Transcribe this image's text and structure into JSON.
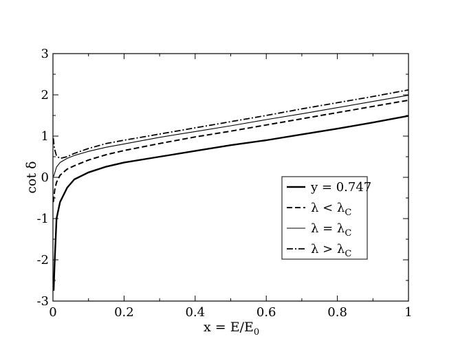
{
  "chart_data": {
    "type": "line",
    "xlabel": {
      "main": "x = E/E",
      "sub": "0"
    },
    "ylabel": "cot δ",
    "xlim": [
      0,
      1
    ],
    "ylim": [
      -3,
      3
    ],
    "x_ticks": [
      "0",
      "0.2",
      "0.4",
      "0.6",
      "0.8",
      "1"
    ],
    "y_ticks": [
      "-3",
      "-2",
      "-1",
      "0",
      "1",
      "2",
      "3"
    ],
    "legend_position": "lower-right",
    "series": [
      {
        "name": {
          "main": "y = 0.747",
          "sub": ""
        },
        "style": "solid-thick",
        "points": [
          [
            0.002,
            -2.75
          ],
          [
            0.005,
            -2.0
          ],
          [
            0.01,
            -1.0
          ],
          [
            0.02,
            -0.6
          ],
          [
            0.04,
            -0.25
          ],
          [
            0.06,
            -0.05
          ],
          [
            0.1,
            0.12
          ],
          [
            0.15,
            0.26
          ],
          [
            0.2,
            0.36
          ],
          [
            0.3,
            0.5
          ],
          [
            0.4,
            0.64
          ],
          [
            0.5,
            0.78
          ],
          [
            0.6,
            0.9
          ],
          [
            0.7,
            1.04
          ],
          [
            0.8,
            1.18
          ],
          [
            0.9,
            1.33
          ],
          [
            1.0,
            1.49
          ]
        ]
      },
      {
        "name": {
          "main": "λ < λ",
          "sub": "C"
        },
        "style": "dashed",
        "points": [
          [
            0.001,
            -0.6
          ],
          [
            0.005,
            -0.3
          ],
          [
            0.01,
            -0.12
          ],
          [
            0.02,
            0.05
          ],
          [
            0.04,
            0.2
          ],
          [
            0.06,
            0.28
          ],
          [
            0.1,
            0.42
          ],
          [
            0.15,
            0.55
          ],
          [
            0.2,
            0.65
          ],
          [
            0.3,
            0.82
          ],
          [
            0.4,
            0.98
          ],
          [
            0.5,
            1.12
          ],
          [
            0.6,
            1.27
          ],
          [
            0.7,
            1.42
          ],
          [
            0.8,
            1.57
          ],
          [
            0.9,
            1.72
          ],
          [
            1.0,
            1.87
          ]
        ]
      },
      {
        "name": {
          "main": "λ = λ",
          "sub": "C"
        },
        "style": "solid-thin",
        "points": [
          [
            0.002,
            0.02
          ],
          [
            0.01,
            0.25
          ],
          [
            0.02,
            0.36
          ],
          [
            0.04,
            0.46
          ],
          [
            0.06,
            0.53
          ],
          [
            0.1,
            0.63
          ],
          [
            0.15,
            0.73
          ],
          [
            0.2,
            0.81
          ],
          [
            0.3,
            0.97
          ],
          [
            0.4,
            1.11
          ],
          [
            0.5,
            1.25
          ],
          [
            0.6,
            1.4
          ],
          [
            0.7,
            1.54
          ],
          [
            0.8,
            1.69
          ],
          [
            0.9,
            1.84
          ],
          [
            1.0,
            1.99
          ]
        ]
      },
      {
        "name": {
          "main": "λ > λ",
          "sub": "C"
        },
        "style": "dashdot",
        "points": [
          [
            0.001,
            0.95
          ],
          [
            0.004,
            0.7
          ],
          [
            0.01,
            0.52
          ],
          [
            0.02,
            0.46
          ],
          [
            0.04,
            0.5
          ],
          [
            0.06,
            0.58
          ],
          [
            0.1,
            0.7
          ],
          [
            0.15,
            0.82
          ],
          [
            0.2,
            0.9
          ],
          [
            0.3,
            1.05
          ],
          [
            0.4,
            1.2
          ],
          [
            0.5,
            1.35
          ],
          [
            0.6,
            1.5
          ],
          [
            0.7,
            1.66
          ],
          [
            0.8,
            1.81
          ],
          [
            0.9,
            1.96
          ],
          [
            1.0,
            2.12
          ]
        ]
      }
    ]
  }
}
